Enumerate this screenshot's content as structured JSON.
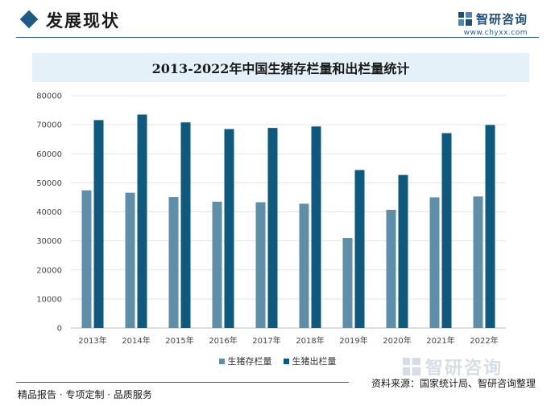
{
  "header": {
    "section_title": "发展现状",
    "brand_name": "智研咨询",
    "brand_url": "www.chyxx.com"
  },
  "chart_data": {
    "type": "bar",
    "title": "2013-2022年中国生猪存栏量和出栏量统计",
    "categories": [
      "2013年",
      "2014年",
      "2015年",
      "2016年",
      "2017年",
      "2018年",
      "2019年",
      "2020年",
      "2021年",
      "2022年"
    ],
    "series": [
      {
        "name": "生猪存栏量",
        "color": "#5f8fa8",
        "values": [
          47400,
          46600,
          45100,
          43500,
          43300,
          42800,
          31000,
          40700,
          45000,
          45300
        ]
      },
      {
        "name": "生猪出栏量",
        "color": "#0f587e",
        "values": [
          71600,
          73500,
          70800,
          68500,
          68900,
          69400,
          54400,
          52700,
          67100,
          69900
        ]
      }
    ],
    "y_ticks": [
      "0",
      "10000",
      "20000",
      "30000",
      "40000",
      "50000",
      "60000",
      "70000",
      "80000"
    ],
    "ylim": [
      0,
      80000
    ],
    "grid": true,
    "legend_position": "bottom"
  },
  "footer": {
    "watermark_name": "智研咨询",
    "source": "资料来源：国家统计局、智研咨询整理",
    "tagline": "精品报告 · 专项定制 · 品质服务"
  }
}
